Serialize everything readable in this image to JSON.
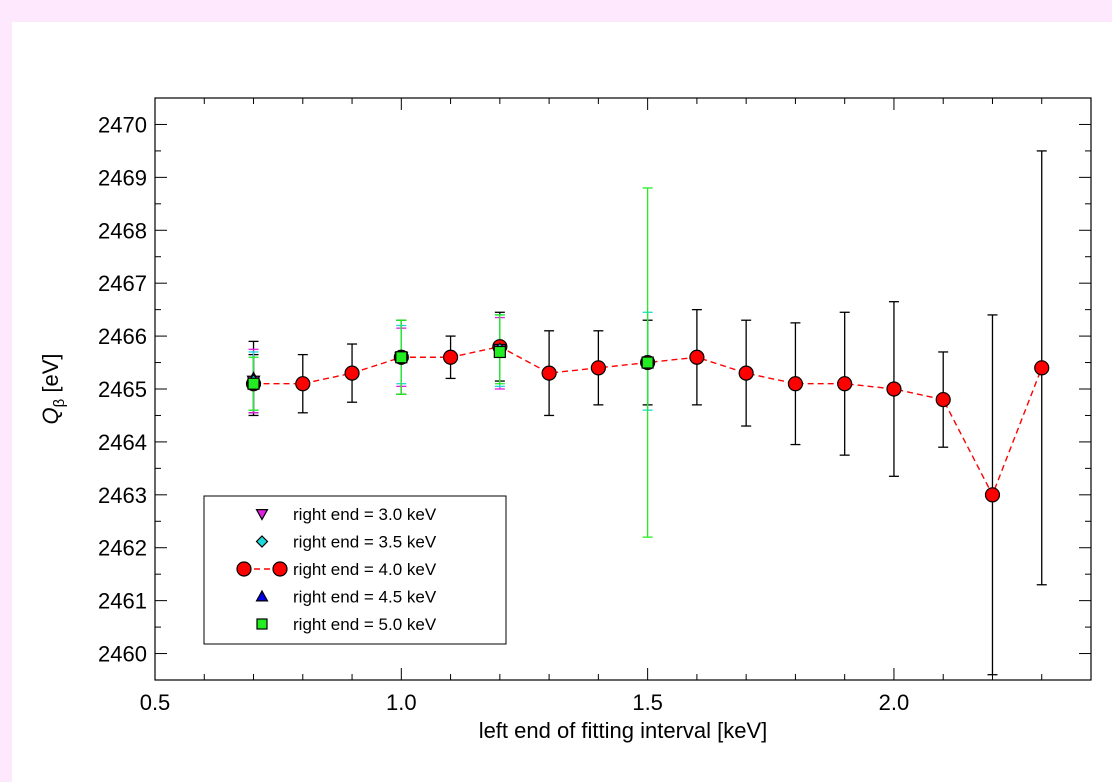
{
  "chart_data": {
    "type": "scatter",
    "xlabel": "left end of fitting interval [keV]",
    "ylabel_main": "Q",
    "ylabel_sub": "β",
    "ylabel_unit": " [eV]",
    "xlim": [
      0.5,
      2.4
    ],
    "ylim": [
      2459.5,
      2470.5
    ],
    "xticks": [
      {
        "value": 0.5,
        "label": "0.5"
      },
      {
        "value": 1.0,
        "label": "1.0"
      },
      {
        "value": 1.5,
        "label": "1.5"
      },
      {
        "value": 2.0,
        "label": "2.0"
      }
    ],
    "yticks": [
      {
        "value": 2460,
        "label": "2460"
      },
      {
        "value": 2461,
        "label": "2461"
      },
      {
        "value": 2462,
        "label": "2462"
      },
      {
        "value": 2463,
        "label": "2463"
      },
      {
        "value": 2464,
        "label": "2464"
      },
      {
        "value": 2465,
        "label": "2465"
      },
      {
        "value": 2466,
        "label": "2466"
      },
      {
        "value": 2467,
        "label": "2467"
      },
      {
        "value": 2468,
        "label": "2468"
      },
      {
        "value": 2469,
        "label": "2469"
      },
      {
        "value": 2470,
        "label": "2470"
      }
    ],
    "legend_position": "bottom-left",
    "series": [
      {
        "name": "right end = 3.0 keV",
        "marker": "triangle-down",
        "color": "#e020e0",
        "errcolor": "#e020e0",
        "line": false,
        "points": [
          {
            "x": 0.7,
            "y": 2465.15,
            "lo": 2464.55,
            "hi": 2465.75
          },
          {
            "x": 1.0,
            "y": 2465.6,
            "lo": 2465.05,
            "hi": 2466.15
          },
          {
            "x": 1.2,
            "y": 2465.75,
            "lo": 2465.0,
            "hi": 2466.35
          }
        ]
      },
      {
        "name": "right end = 3.5 keV",
        "marker": "diamond",
        "color": "#20d8d8",
        "errcolor": "#20d8d8",
        "line": false,
        "points": [
          {
            "x": 0.7,
            "y": 2465.15,
            "lo": 2464.6,
            "hi": 2465.7
          },
          {
            "x": 1.0,
            "y": 2465.6,
            "lo": 2465.1,
            "hi": 2466.2
          },
          {
            "x": 1.2,
            "y": 2465.75,
            "lo": 2465.05,
            "hi": 2466.4
          },
          {
            "x": 1.5,
            "y": 2465.5,
            "lo": 2464.6,
            "hi": 2466.45
          }
        ]
      },
      {
        "name": "right end = 4.0 keV",
        "marker": "circle",
        "color": "#ff0000",
        "errcolor": "#000000",
        "line": true,
        "points": [
          {
            "x": 0.7,
            "y": 2465.1,
            "lo": 2464.55,
            "hi": 2465.65
          },
          {
            "x": 0.8,
            "y": 2465.1,
            "lo": 2464.55,
            "hi": 2465.65
          },
          {
            "x": 0.9,
            "y": 2465.3,
            "lo": 2464.75,
            "hi": 2465.85
          },
          {
            "x": 1.0,
            "y": 2465.6,
            "lo": 2464.9,
            "hi": 2466.3
          },
          {
            "x": 1.1,
            "y": 2465.6,
            "lo": 2465.2,
            "hi": 2466.0
          },
          {
            "x": 1.2,
            "y": 2465.8,
            "lo": 2465.15,
            "hi": 2466.45
          },
          {
            "x": 1.3,
            "y": 2465.3,
            "lo": 2464.5,
            "hi": 2466.1
          },
          {
            "x": 1.4,
            "y": 2465.4,
            "lo": 2464.7,
            "hi": 2466.1
          },
          {
            "x": 1.5,
            "y": 2465.5,
            "lo": 2464.7,
            "hi": 2466.3
          },
          {
            "x": 1.6,
            "y": 2465.6,
            "lo": 2464.7,
            "hi": 2466.5
          },
          {
            "x": 1.7,
            "y": 2465.3,
            "lo": 2464.3,
            "hi": 2466.3
          },
          {
            "x": 1.8,
            "y": 2465.1,
            "lo": 2463.95,
            "hi": 2466.25
          },
          {
            "x": 1.9,
            "y": 2465.1,
            "lo": 2463.75,
            "hi": 2466.45
          },
          {
            "x": 2.0,
            "y": 2465.0,
            "lo": 2463.35,
            "hi": 2466.65
          },
          {
            "x": 2.1,
            "y": 2464.8,
            "lo": 2463.9,
            "hi": 2465.7
          },
          {
            "x": 2.2,
            "y": 2463.0,
            "lo": 2459.6,
            "hi": 2466.4
          },
          {
            "x": 2.3,
            "y": 2465.4,
            "lo": 2461.3,
            "hi": 2469.5
          }
        ]
      },
      {
        "name": "right end = 4.5 keV",
        "marker": "triangle-up",
        "color": "#0000ee",
        "errcolor": "#000000",
        "line": false,
        "points": [
          {
            "x": 0.7,
            "y": 2465.2,
            "lo": 2464.5,
            "hi": 2465.9
          }
        ]
      },
      {
        "name": "right end = 5.0 keV",
        "marker": "square",
        "color": "#22ee22",
        "errcolor": "#22ee22",
        "line": false,
        "points": [
          {
            "x": 0.7,
            "y": 2465.1,
            "lo": 2464.6,
            "hi": 2465.6
          },
          {
            "x": 1.0,
            "y": 2465.6,
            "lo": 2464.9,
            "hi": 2466.3
          },
          {
            "x": 1.2,
            "y": 2465.7,
            "lo": 2465.1,
            "hi": 2466.4
          },
          {
            "x": 1.5,
            "y": 2465.5,
            "lo": 2462.2,
            "hi": 2468.8
          }
        ]
      }
    ]
  }
}
